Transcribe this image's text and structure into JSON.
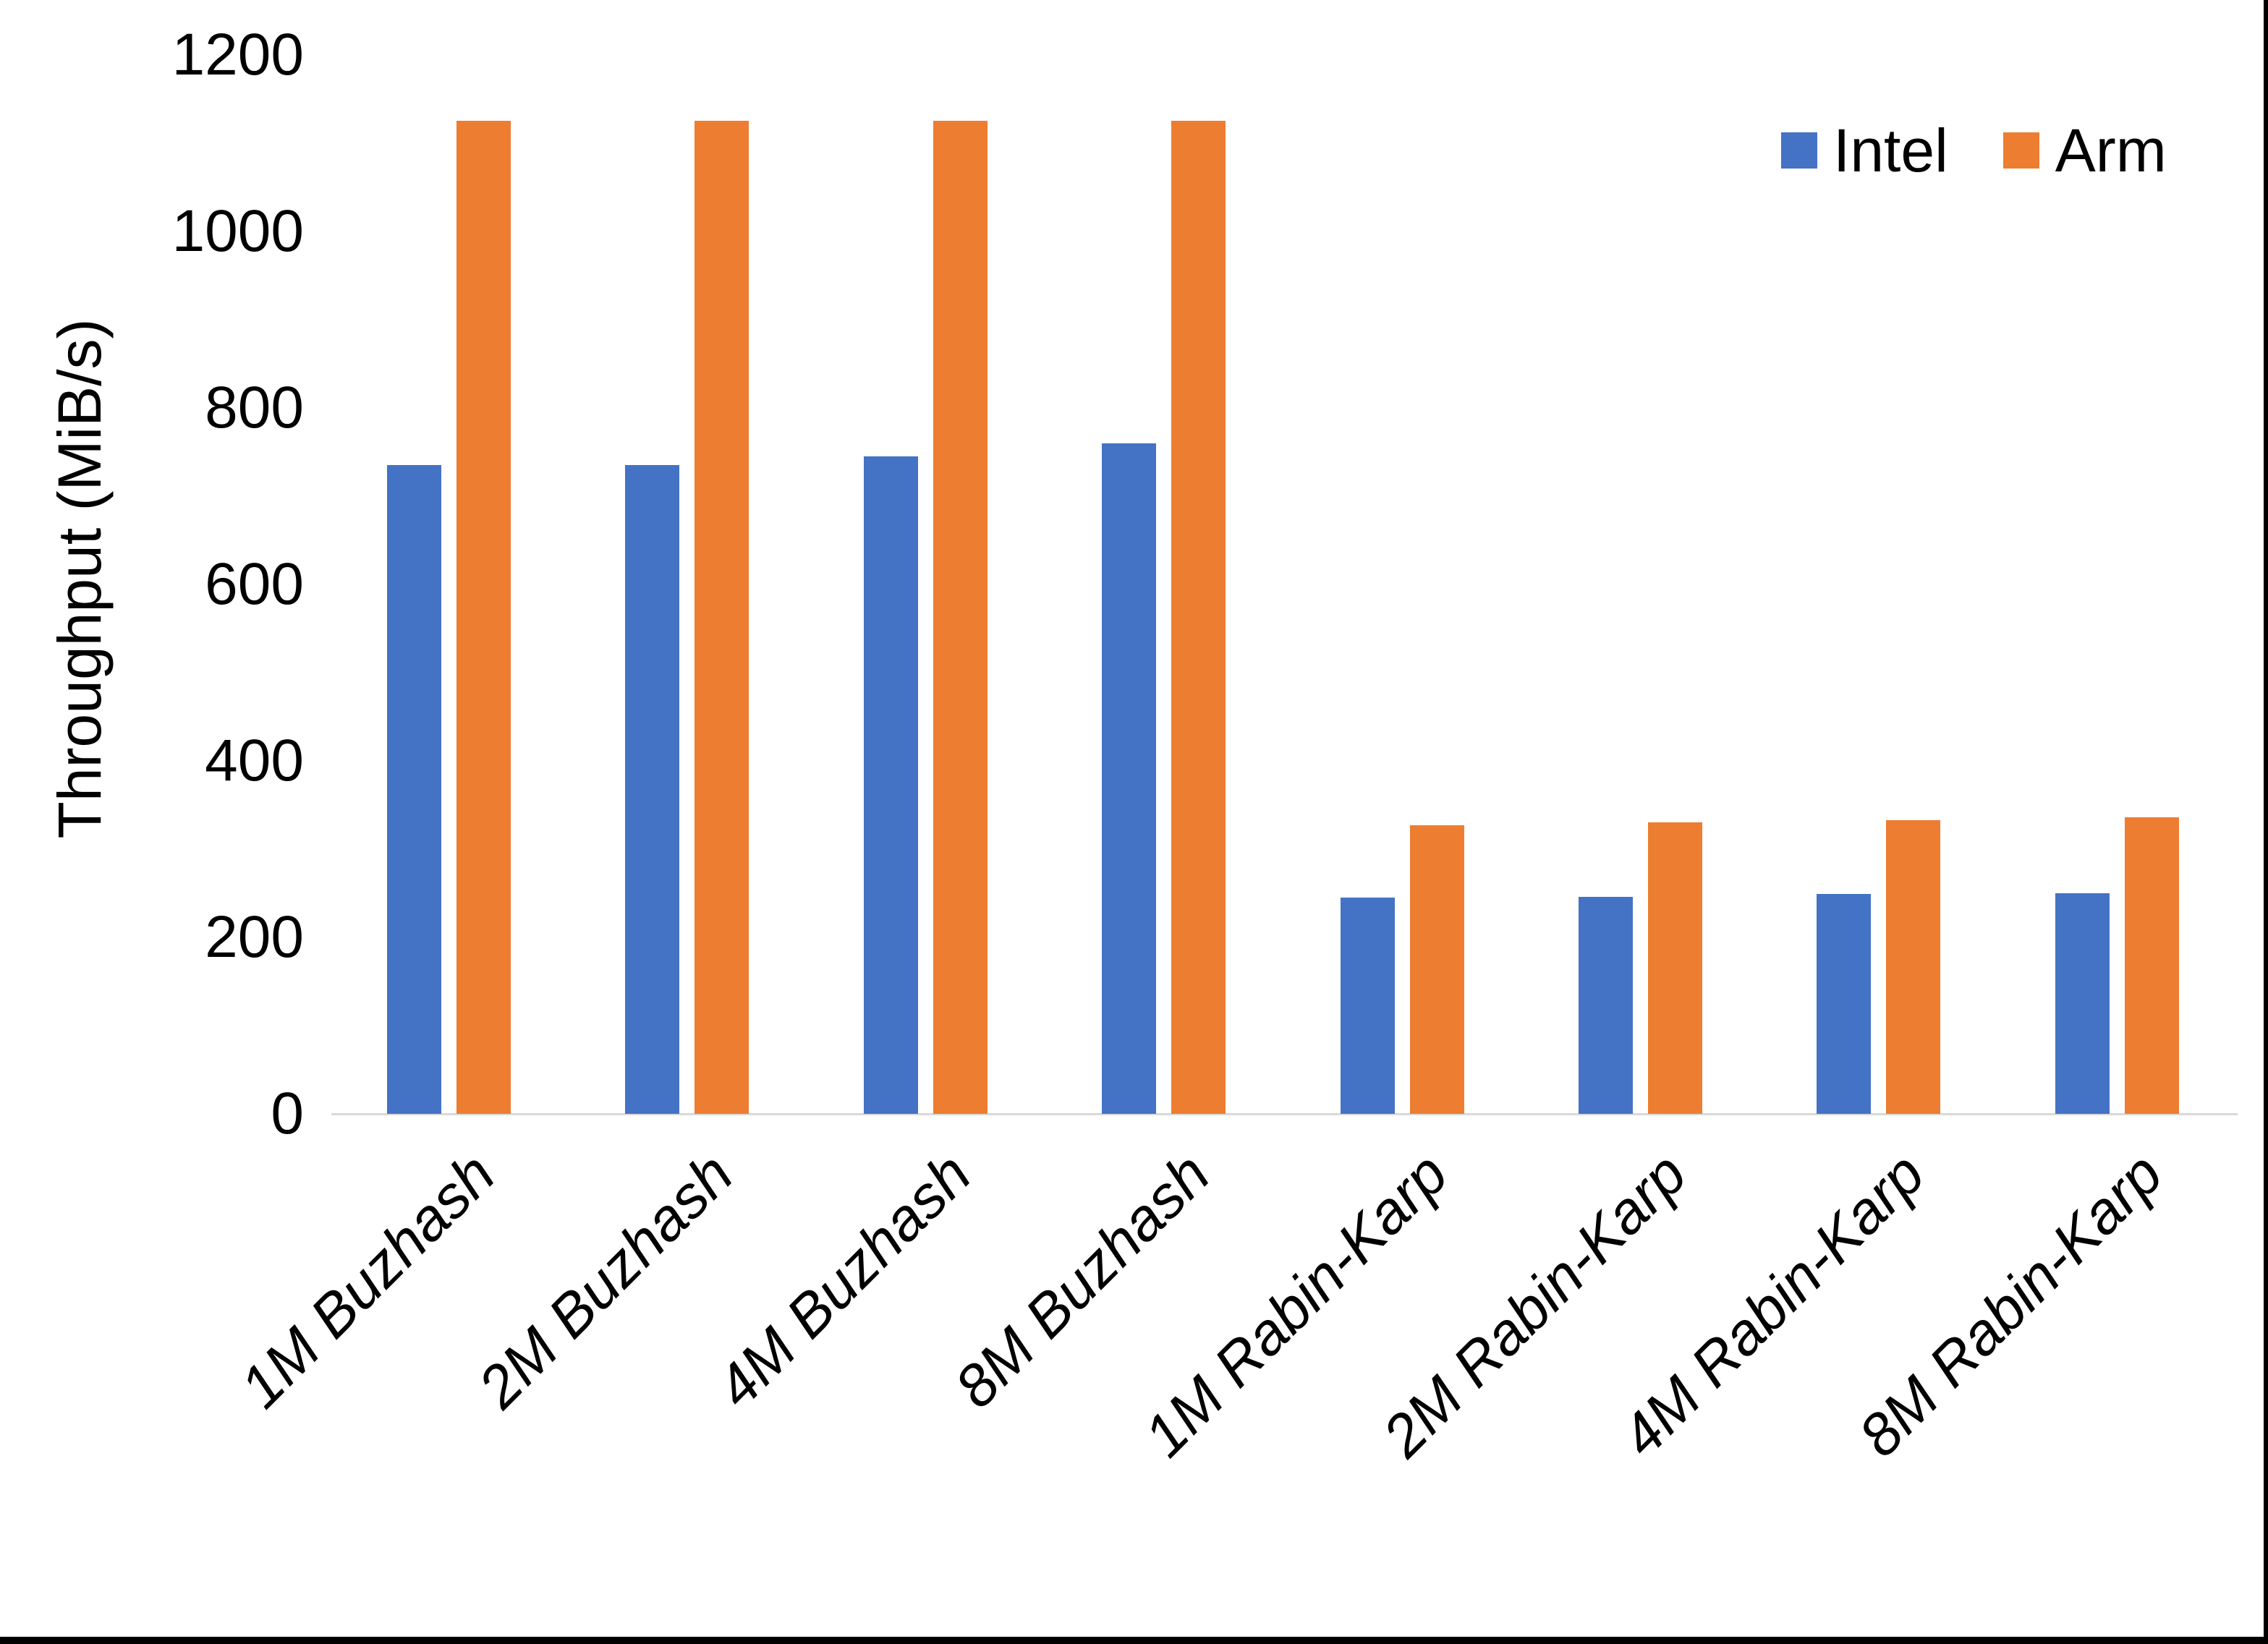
{
  "chart_data": {
    "type": "bar",
    "title": "",
    "xlabel": "",
    "ylabel": "Throughput (MiB/s)",
    "categories": [
      "1M Buzhash",
      "2M Buzhash",
      "4M Buzhash",
      "8M Buzhash",
      "1M Rabin-Karp",
      "2M Rabin-Karp",
      "4M Rabin-Karp",
      "8M Rabin-Karp"
    ],
    "series": [
      {
        "name": "Intel",
        "color": "#4472C4",
        "values": [
          735,
          735,
          745,
          760,
          245,
          246,
          249,
          250
        ]
      },
      {
        "name": "Arm",
        "color": "#ED7D31",
        "values": [
          1125,
          1125,
          1125,
          1125,
          327,
          330,
          333,
          336
        ]
      }
    ],
    "ylim": [
      0,
      1200
    ],
    "yticks": [
      0,
      200,
      400,
      600,
      800,
      1000,
      1200
    ],
    "grid": false,
    "legend_position": "top-right",
    "legend_entries": [
      "Intel",
      "Arm"
    ],
    "axis_line_color": "#D9D9D9",
    "text_color": "#000000",
    "background_color": "#FFFFFF",
    "border_color": "#000000"
  }
}
